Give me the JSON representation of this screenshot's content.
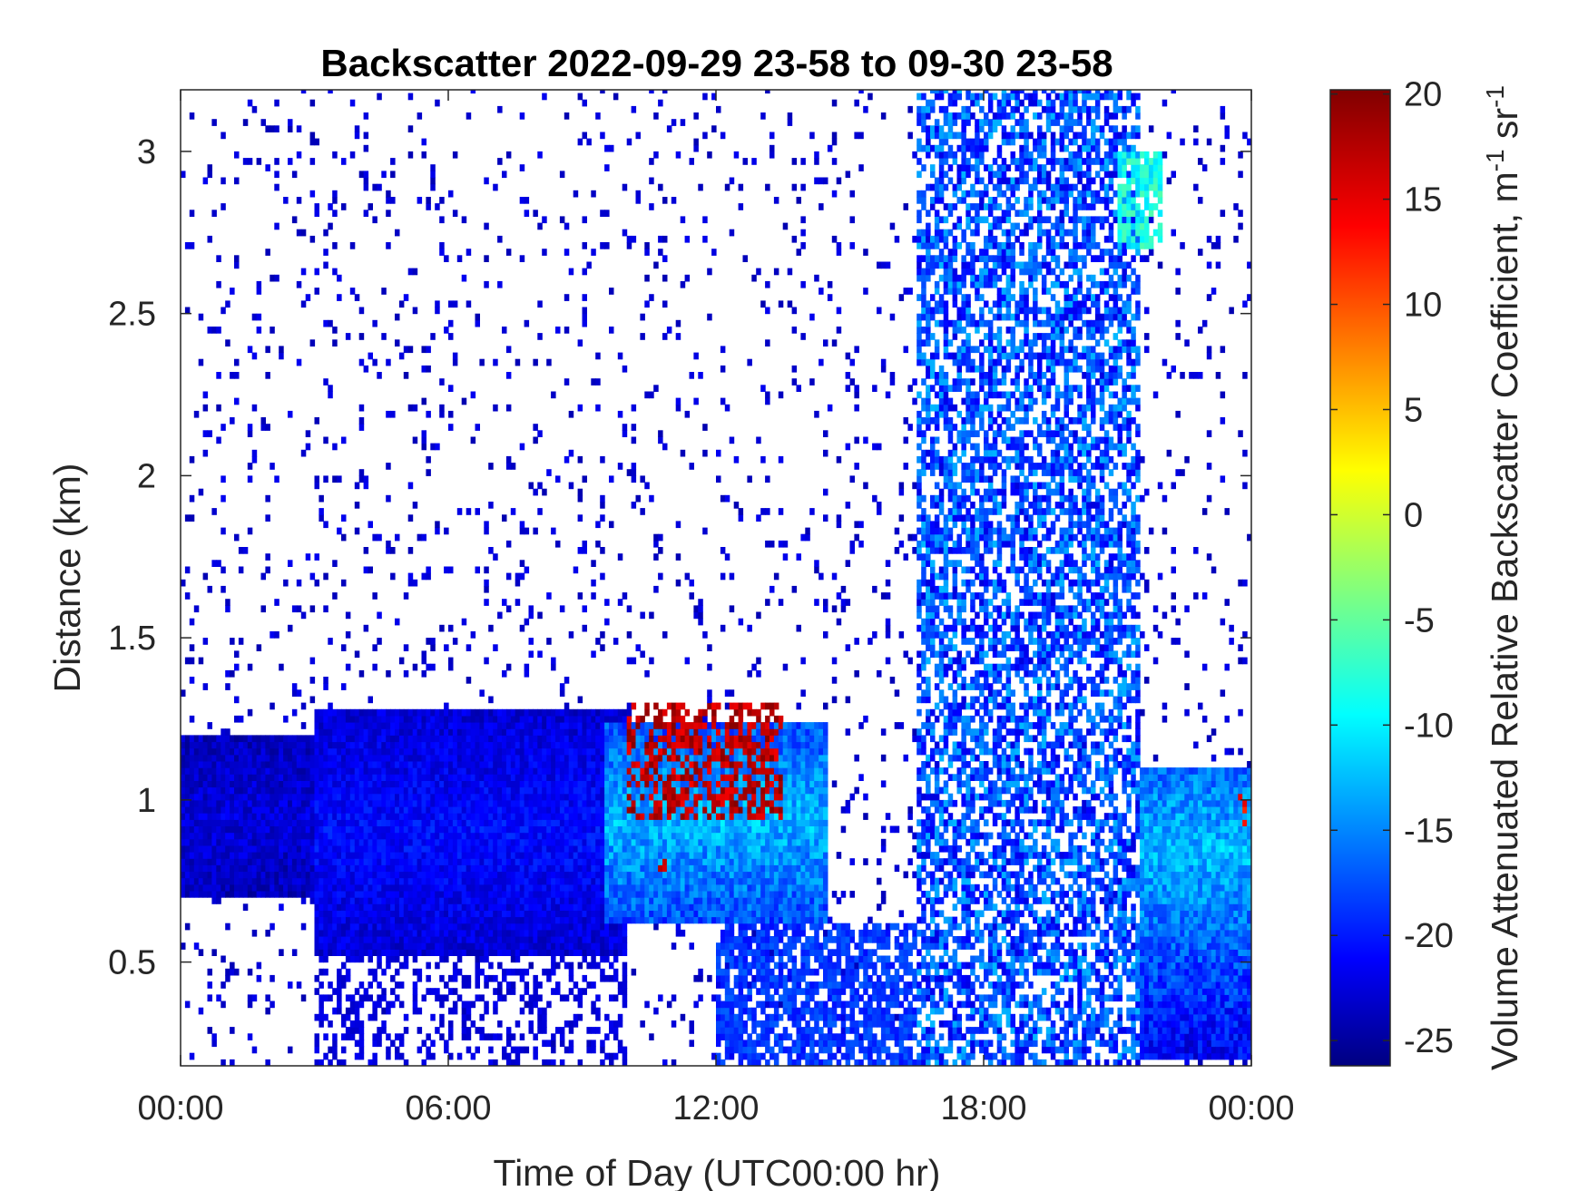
{
  "chart_data": {
    "type": "heatmap",
    "title": "Backscatter 2022-09-29 23-58 to 09-30 23-58",
    "xlabel": "Time of Day (UTC00:00 hr)",
    "ylabel": "Distance (km)",
    "x_ticks": [
      "00:00",
      "06:00",
      "12:00",
      "18:00",
      "00:00"
    ],
    "x_tick_values_hr": [
      0,
      6,
      12,
      18,
      24
    ],
    "xlim_hr": [
      0,
      24
    ],
    "y_ticks": [
      "0.5",
      "1",
      "1.5",
      "2",
      "2.5",
      "3"
    ],
    "y_tick_values_km": [
      0.5,
      1,
      1.5,
      2,
      2.5,
      3
    ],
    "ylim_km": [
      0.18,
      3.19
    ],
    "colorbar": {
      "label": "Volume Attenuated Relative Backscatter Coefficient, m",
      "label_sup1": "-1",
      "label_mid": " sr",
      "label_sup2": "-1",
      "ticks": [
        "20",
        "15",
        "10",
        "5",
        "0",
        "-5",
        "-10",
        "-15",
        "-20",
        "-25"
      ],
      "tick_values": [
        20,
        15,
        10,
        5,
        0,
        -5,
        -10,
        -15,
        -20,
        -25
      ],
      "clim": [
        -26.2,
        20.2
      ],
      "colormap": "jet",
      "colormap_stops": [
        "#000080",
        "#0000ff",
        "#00ffff",
        "#ffff00",
        "#ff0000",
        "#800000"
      ]
    },
    "layers": [
      {
        "feature": "boundary layer aerosol, hrs 0-3",
        "x_hr": [
          0,
          3
        ],
        "y_km": [
          0.7,
          1.2
        ],
        "value_db": -22
      },
      {
        "feature": "boundary layer aerosol, hrs 3-10",
        "x_hr": [
          3,
          10
        ],
        "y_km": [
          0.52,
          1.28
        ],
        "value_db": -20
      },
      {
        "feature": "boundary layer aerosol, hrs 9.5-14.5",
        "x_hr": [
          9.5,
          14.5
        ],
        "y_km": [
          0.62,
          1.25
        ],
        "value_db": -12
      },
      {
        "feature": "strong returns, hrs 10-13.5",
        "x_hr": [
          10,
          13.5
        ],
        "y_km": [
          0.95,
          1.3
        ],
        "value_db": 15
      },
      {
        "feature": "strong return near 10.8 h",
        "x_hr": [
          10.6,
          10.9
        ],
        "y_km": [
          0.78,
          0.83
        ],
        "value_db": 15
      },
      {
        "feature": "precipitation streaks, hrs 16.5-21.5",
        "x_hr": [
          16.5,
          21.5
        ],
        "y_km": [
          0.18,
          3.19
        ],
        "value_db": -18
      },
      {
        "feature": "elevated layer, hrs 21-22",
        "x_hr": [
          21,
          22
        ],
        "y_km": [
          2.7,
          3.0
        ],
        "value_db": -8
      },
      {
        "feature": "boundary layer aerosol, hrs 21.5-24",
        "x_hr": [
          21.5,
          24
        ],
        "y_km": [
          0.2,
          1.1
        ],
        "value_db": -12
      },
      {
        "feature": "strong return near 23.8 h",
        "x_hr": [
          23.7,
          23.95
        ],
        "y_km": [
          0.93,
          1.03
        ],
        "value_db": 12
      }
    ]
  }
}
